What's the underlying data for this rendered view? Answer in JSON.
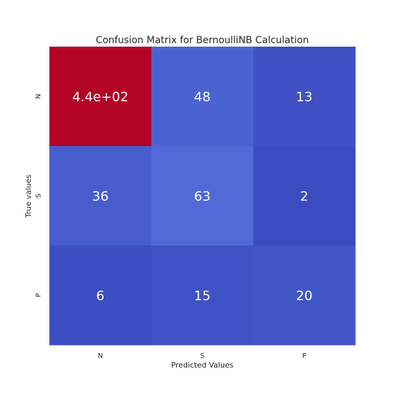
{
  "chart_data": {
    "type": "heatmap",
    "title": "Confusion Matrix for BernoulliNB Calculation",
    "xlabel": "Predicted Values",
    "ylabel": "True values",
    "x_categories": [
      "N",
      "S",
      "P"
    ],
    "y_categories": [
      "N",
      "S",
      "P"
    ],
    "values": [
      [
        440,
        48,
        13
      ],
      [
        36,
        63,
        2
      ],
      [
        6,
        15,
        20
      ]
    ],
    "cell_labels": [
      [
        "4.4e+02",
        "48",
        "13"
      ],
      [
        "36",
        "63",
        "2"
      ],
      [
        "6",
        "15",
        "20"
      ]
    ],
    "colormap": "coolwarm",
    "colors": {
      "low": "#3b4cc0",
      "high": "#b40426",
      "cell_text": "#ffffff"
    },
    "colorbar": false,
    "grid": false
  }
}
